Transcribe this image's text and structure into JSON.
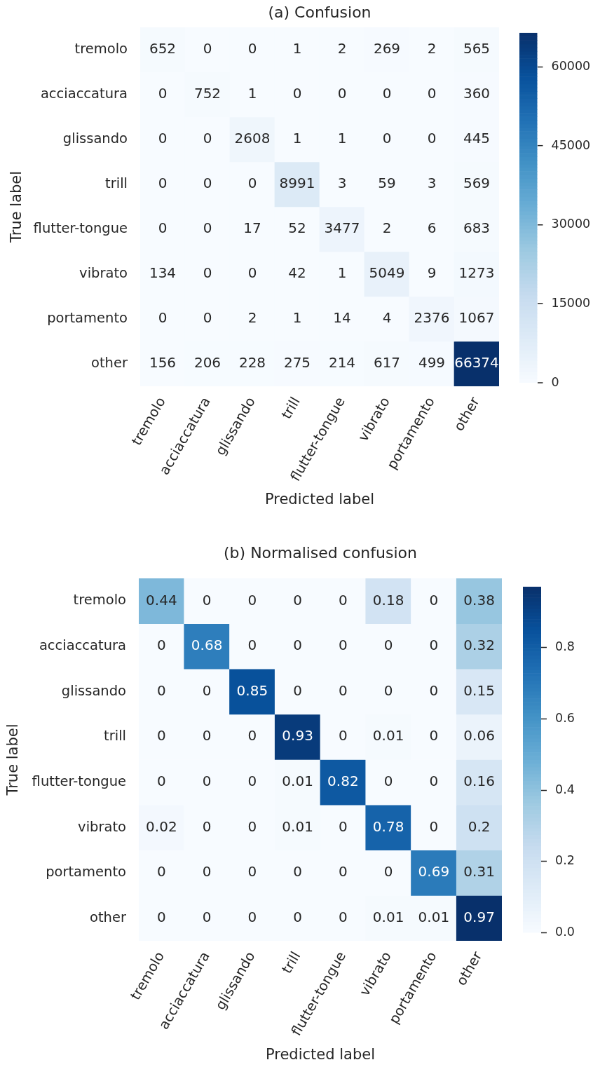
{
  "chart_data": [
    {
      "type": "heatmap",
      "title": "(a) Confusion",
      "xlabel": "Predicted label",
      "ylabel": "True label",
      "categories": [
        "tremolo",
        "acciaccatura",
        "glissando",
        "trill",
        "flutter-tongue",
        "vibrato",
        "portamento",
        "other"
      ],
      "y_categories": [
        "tremolo",
        "acciaccatura",
        "glissando",
        "trill",
        "flutter-tongue",
        "vibrato",
        "portamento",
        "other"
      ],
      "cells": [
        [
          652,
          0,
          0,
          1,
          2,
          269,
          2,
          565
        ],
        [
          0,
          752,
          1,
          0,
          0,
          0,
          0,
          360
        ],
        [
          0,
          0,
          2608,
          1,
          1,
          0,
          0,
          445
        ],
        [
          0,
          0,
          0,
          8991,
          3,
          59,
          3,
          569
        ],
        [
          0,
          0,
          17,
          52,
          3477,
          2,
          6,
          683
        ],
        [
          134,
          0,
          0,
          42,
          1,
          5049,
          9,
          1273
        ],
        [
          0,
          0,
          2,
          1,
          14,
          4,
          2376,
          1067
        ],
        [
          156,
          206,
          228,
          275,
          214,
          617,
          499,
          66374
        ]
      ],
      "clim": [
        0,
        66374
      ],
      "cticks": [
        0,
        15000,
        30000,
        45000,
        60000
      ],
      "data_labels": true
    },
    {
      "type": "heatmap",
      "title": "(b) Normalised confusion",
      "xlabel": "Predicted label",
      "ylabel": "True label",
      "categories": [
        "tremolo",
        "acciaccatura",
        "glissando",
        "trill",
        "flutter-tongue",
        "vibrato",
        "portamento",
        "other"
      ],
      "y_categories": [
        "tremolo",
        "acciaccatura",
        "glissando",
        "trill",
        "flutter-tongue",
        "vibrato",
        "portamento",
        "other"
      ],
      "cells": [
        [
          0.44,
          0,
          0,
          0,
          0,
          0.18,
          0,
          0.38
        ],
        [
          0,
          0.68,
          0,
          0,
          0,
          0,
          0,
          0.32
        ],
        [
          0,
          0,
          0.85,
          0,
          0,
          0,
          0,
          0.15
        ],
        [
          0,
          0,
          0,
          0.93,
          0,
          0.01,
          0,
          0.06
        ],
        [
          0,
          0,
          0,
          0.01,
          0.82,
          0,
          0,
          0.16
        ],
        [
          0.02,
          0,
          0,
          0.01,
          0,
          0.78,
          0,
          0.2
        ],
        [
          0,
          0,
          0,
          0,
          0,
          0,
          0.69,
          0.31
        ],
        [
          0,
          0,
          0,
          0,
          0,
          0.01,
          0.01,
          0.97
        ]
      ],
      "clim": [
        0,
        0.97
      ],
      "cticks": [
        {
          "value": 0,
          "label": "0.0"
        },
        0.2,
        0.4,
        0.6,
        0.8
      ],
      "data_labels": true
    }
  ]
}
